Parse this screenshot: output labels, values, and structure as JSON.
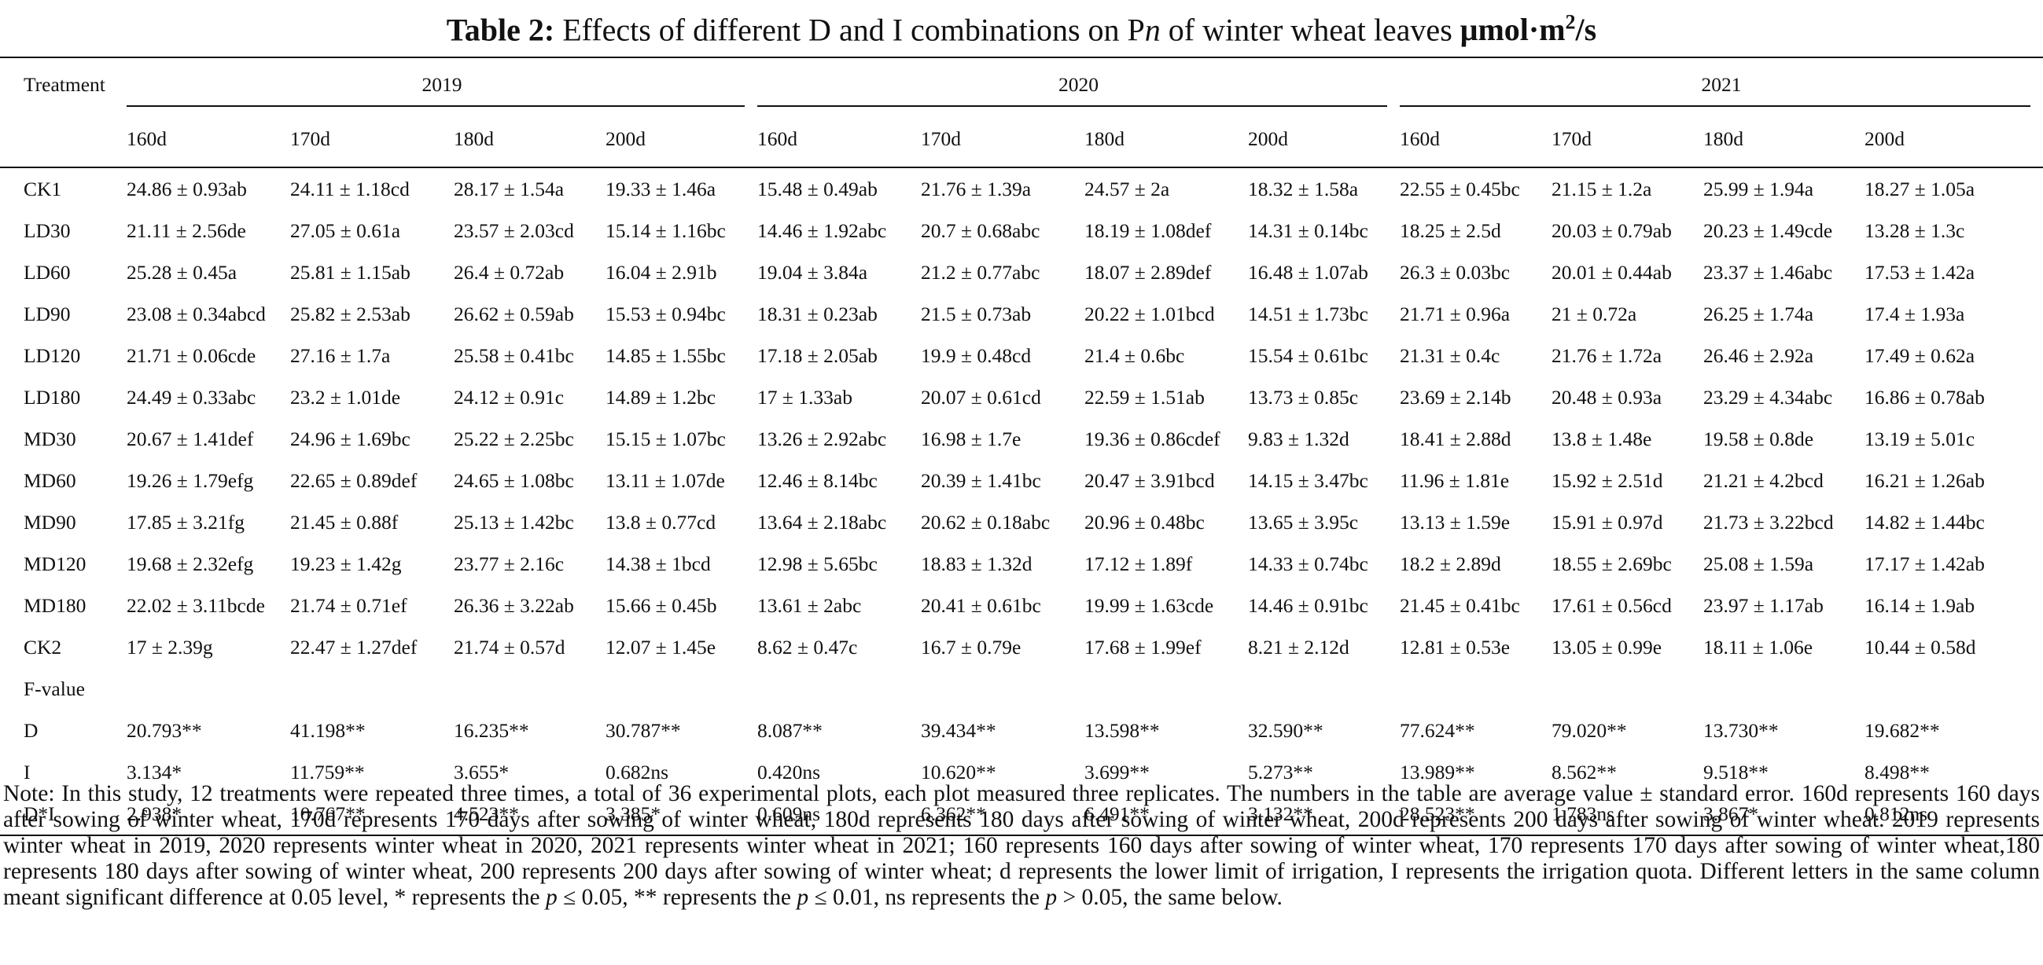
{
  "title": {
    "label": "Table 2:",
    "text_before": "Effects of different D and I combinations on P",
    "text_italic": "n",
    "text_after": "of winter wheat leaves",
    "unit_main": "μmol·m",
    "unit_sup": "2",
    "unit_tail": "/s"
  },
  "table": {
    "treatment_header": "Treatment",
    "years": [
      "2019",
      "2020",
      "2021"
    ],
    "days": [
      "160d",
      "170d",
      "180d",
      "200d",
      "160d",
      "170d",
      "180d",
      "200d",
      "160d",
      "170d",
      "180d",
      "200d"
    ],
    "rows": [
      [
        "CK1",
        "24.86 ± 0.93ab",
        "24.11 ± 1.18cd",
        "28.17 ± 1.54a",
        "19.33 ± 1.46a",
        "15.48 ± 0.49ab",
        "21.76 ± 1.39a",
        "24.57 ± 2a",
        "18.32 ± 1.58a",
        "22.55 ± 0.45bc",
        "21.15 ± 1.2a",
        "25.99 ± 1.94a",
        "18.27 ± 1.05a"
      ],
      [
        "LD30",
        "21.11 ± 2.56de",
        "27.05 ± 0.61a",
        "23.57 ± 2.03cd",
        "15.14 ± 1.16bc",
        "14.46 ± 1.92abc",
        "20.7 ± 0.68abc",
        "18.19 ± 1.08def",
        "14.31 ± 0.14bc",
        "18.25 ± 2.5d",
        "20.03 ± 0.79ab",
        "20.23 ± 1.49cde",
        "13.28 ± 1.3c"
      ],
      [
        "LD60",
        "25.28 ± 0.45a",
        "25.81 ± 1.15ab",
        "26.4 ± 0.72ab",
        "16.04 ± 2.91b",
        "19.04 ± 3.84a",
        "21.2 ± 0.77abc",
        "18.07 ± 2.89def",
        "16.48 ± 1.07ab",
        "26.3 ± 0.03bc",
        "20.01 ± 0.44ab",
        "23.37 ± 1.46abc",
        "17.53 ± 1.42a"
      ],
      [
        "LD90",
        "23.08 ± 0.34abcd",
        "25.82 ± 2.53ab",
        "26.62 ± 0.59ab",
        "15.53 ± 0.94bc",
        "18.31 ± 0.23ab",
        "21.5 ± 0.73ab",
        "20.22 ± 1.01bcd",
        "14.51 ± 1.73bc",
        "21.71 ± 0.96a",
        "21 ± 0.72a",
        "26.25 ± 1.74a",
        "17.4 ± 1.93a"
      ],
      [
        "LD120",
        "21.71 ± 0.06cde",
        "27.16 ± 1.7a",
        "25.58 ± 0.41bc",
        "14.85 ± 1.55bc",
        "17.18 ± 2.05ab",
        "19.9 ± 0.48cd",
        "21.4 ± 0.6bc",
        "15.54 ± 0.61bc",
        "21.31 ± 0.4c",
        "21.76 ± 1.72a",
        "26.46 ± 2.92a",
        "17.49 ± 0.62a"
      ],
      [
        "LD180",
        "24.49 ± 0.33abc",
        "23.2 ± 1.01de",
        "24.12 ± 0.91c",
        "14.89 ± 1.2bc",
        "17 ± 1.33ab",
        "20.07 ± 0.61cd",
        "22.59 ± 1.51ab",
        "13.73 ± 0.85c",
        "23.69 ± 2.14b",
        "20.48 ± 0.93a",
        "23.29 ± 4.34abc",
        "16.86 ± 0.78ab"
      ],
      [
        "MD30",
        "20.67 ± 1.41def",
        "24.96 ± 1.69bc",
        "25.22 ± 2.25bc",
        "15.15 ± 1.07bc",
        "13.26 ± 2.92abc",
        "16.98 ± 1.7e",
        "19.36 ± 0.86cdef",
        "9.83 ± 1.32d",
        "18.41 ± 2.88d",
        "13.8 ± 1.48e",
        "19.58 ± 0.8de",
        "13.19 ± 5.01c"
      ],
      [
        "MD60",
        "19.26 ± 1.79efg",
        "22.65 ± 0.89def",
        "24.65 ± 1.08bc",
        "13.11 ± 1.07de",
        "12.46 ± 8.14bc",
        "20.39 ± 1.41bc",
        "20.47 ± 3.91bcd",
        "14.15 ± 3.47bc",
        "11.96 ± 1.81e",
        "15.92 ± 2.51d",
        "21.21 ± 4.2bcd",
        "16.21 ± 1.26ab"
      ],
      [
        "MD90",
        "17.85 ± 3.21fg",
        "21.45 ± 0.88f",
        "25.13 ± 1.42bc",
        "13.8 ± 0.77cd",
        "13.64 ± 2.18abc",
        "20.62 ± 0.18abc",
        "20.96 ± 0.48bc",
        "13.65 ± 3.95c",
        "13.13 ± 1.59e",
        "15.91 ± 0.97d",
        "21.73 ± 3.22bcd",
        "14.82 ± 1.44bc"
      ],
      [
        "MD120",
        "19.68 ± 2.32efg",
        "19.23 ± 1.42g",
        "23.77 ± 2.16c",
        "14.38 ± 1bcd",
        "12.98 ± 5.65bc",
        "18.83 ± 1.32d",
        "17.12 ± 1.89f",
        "14.33 ± 0.74bc",
        "18.2 ± 2.89d",
        "18.55 ± 2.69bc",
        "25.08 ± 1.59a",
        "17.17 ± 1.42ab"
      ],
      [
        "MD180",
        "22.02 ± 3.11bcde",
        "21.74 ± 0.71ef",
        "26.36 ± 3.22ab",
        "15.66 ± 0.45b",
        "13.61 ± 2abc",
        "20.41 ± 0.61bc",
        "19.99 ± 1.63cde",
        "14.46 ± 0.91bc",
        "21.45 ± 0.41bc",
        "17.61 ± 0.56cd",
        "23.97 ± 1.17ab",
        "16.14 ± 1.9ab"
      ],
      [
        "CK2",
        "17 ± 2.39g",
        "22.47 ± 1.27def",
        "21.74 ± 0.57d",
        "12.07 ± 1.45e",
        "8.62 ± 0.47c",
        "16.7 ± 0.79e",
        "17.68 ± 1.99ef",
        "8.21 ± 2.12d",
        "12.81 ± 0.53e",
        "13.05 ± 0.99e",
        "18.11 ± 1.06e",
        "10.44 ± 0.58d"
      ]
    ],
    "fvalue_label": "F-value",
    "frows": [
      [
        "D",
        "20.793**",
        "41.198**",
        "16.235**",
        "30.787**",
        "8.087**",
        "39.434**",
        "13.598**",
        "32.590**",
        "77.624**",
        "79.020**",
        "13.730**",
        "19.682**"
      ],
      [
        "I",
        "3.134*",
        "11.759**",
        "3.655*",
        "0.682ns",
        "0.420ns",
        "10.620**",
        "3.699**",
        "5.273**",
        "13.989**",
        "8.562**",
        "9.518**",
        "8.498**"
      ],
      [
        "D*I",
        "2.938*",
        "10.767**",
        "4.523**",
        "3.385*",
        "0.609ns",
        "6.362**",
        "6.491**",
        "3.132**",
        "28.523**",
        "1.783ns",
        "3.867*",
        "0.812ns"
      ]
    ]
  },
  "note": {
    "part1": "Note: In this study, 12 treatments were repeated three times, a total of 36 experimental plots, each plot measured three replicates. The numbers in the table are average value ± standard error. 160d represents 160 days after sowing of winter wheat, 170d represents 170 days after sowing of winter wheat, 180d represents 180 days after sowing of winter wheat, 200d represents 200 days after sowing of winter wheat. 2019 represents winter wheat in 2019, 2020 represents winter wheat in 2020, 2021 represents winter wheat in 2021; 160 represents 160 days after sowing of winter wheat, 170 represents 170 days after sowing of winter wheat,180 represents 180 days after sowing of winter wheat, 200 represents 200 days after sowing of winter wheat; d represents the lower limit of irrigation, I represents the irrigation quota. Different letters in the same column meant significant difference at 0.05 level, * represents the",
    "p_symbol": "p",
    "part2": "≤ 0.05, ** represents the",
    "part3": "≤ 0.01, ns represents the",
    "part4": "> 0.05, the same below."
  }
}
